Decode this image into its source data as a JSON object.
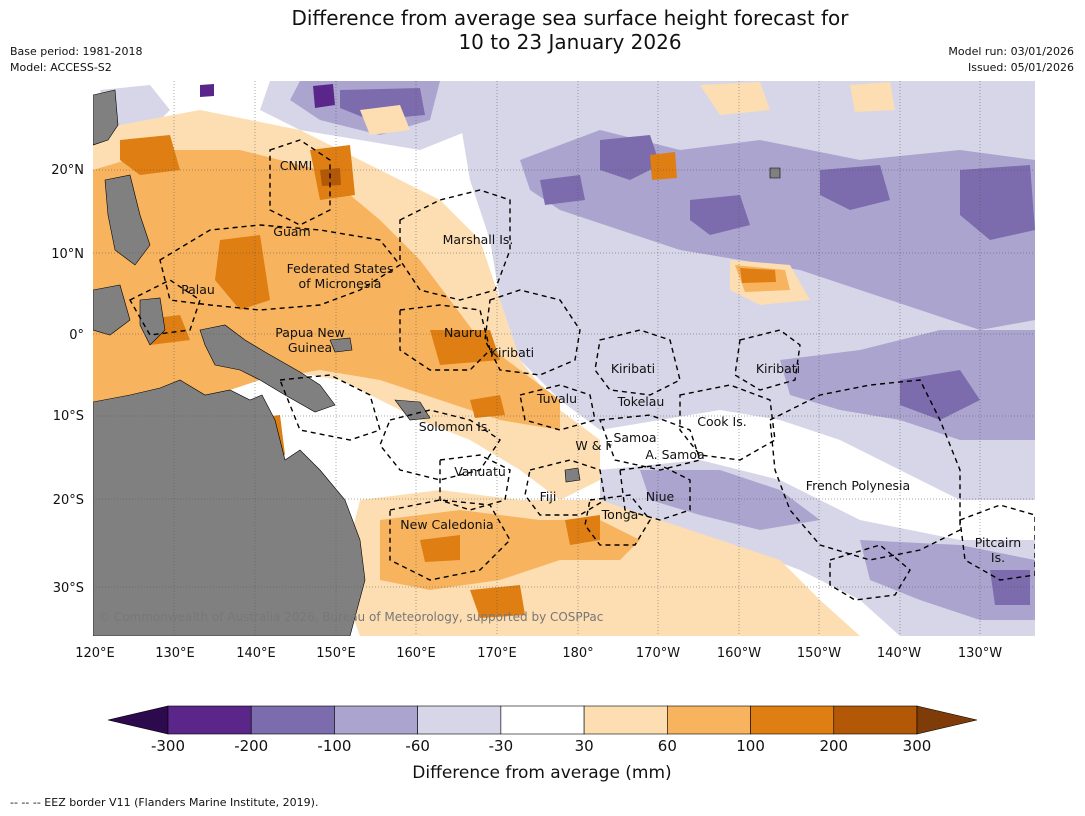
{
  "title_line1": "Difference from average sea surface height forecast for",
  "title_line2": "10 to 23 January 2026",
  "meta_left": {
    "base_period": "Base period: 1981-2018",
    "model": "Model: ACCESS-S2"
  },
  "meta_right": {
    "model_run": "Model run: 03/01/2026",
    "issued": "Issued: 05/01/2026"
  },
  "lon_labels": [
    "120°E",
    "130°E",
    "140°E",
    "150°E",
    "160°E",
    "170°E",
    "180°",
    "170°W",
    "160°W",
    "150°W",
    "140°W",
    "130°W"
  ],
  "lat_labels": [
    "20°N",
    "10°N",
    "0°",
    "10°S",
    "20°S",
    "30°S"
  ],
  "places": {
    "cnmi": "CNMI",
    "guam": "Guam",
    "marshall": "Marshall Is.",
    "fsm1": "Federated States",
    "fsm2": "of Micronesia",
    "palau": "Palau",
    "png1": "Papua New",
    "png2": "Guinea",
    "nauru": "Nauru",
    "kiribati_w": "Kiribati",
    "kiribati_c": "Kiribati",
    "kiribati_e": "Kiribati",
    "tuvalu": "Tuvalu",
    "tokelau": "Tokelau",
    "solomon": "Solomon Is.",
    "cook": "Cook Is.",
    "samoa": "Samoa",
    "wf": "W & F",
    "asamoa": "A. Samoa",
    "vanuatu": "Vanuatu",
    "fiji": "Fiji",
    "niue": "Niue",
    "french_poly": "French Polynesia",
    "tonga": "Tonga",
    "new_caledonia": "New Caledonia",
    "pitcairn1": "Pitcairn",
    "pitcairn2": "Is."
  },
  "copyright": "© Commonwealth of Australia 2026, Bureau of Meteorology, supported by COSPPac",
  "colorbar": {
    "ticks": [
      "-300",
      "-200",
      "-100",
      "-60",
      "-30",
      "30",
      "60",
      "100",
      "200",
      "300"
    ],
    "colors": [
      "#5a2689",
      "#7c6bad",
      "#aba4cf",
      "#d6d6e8",
      "#ffffff",
      "#fddeb2",
      "#f7b35e",
      "#de7e13",
      "#b35806"
    ],
    "extend_low": "#2d0a4e",
    "extend_high": "#7f3b08",
    "label": "Difference from average (mm)"
  },
  "footnote": "--  --  -- EEZ border V11 (Flanders Marine Institute, 2019)."
}
